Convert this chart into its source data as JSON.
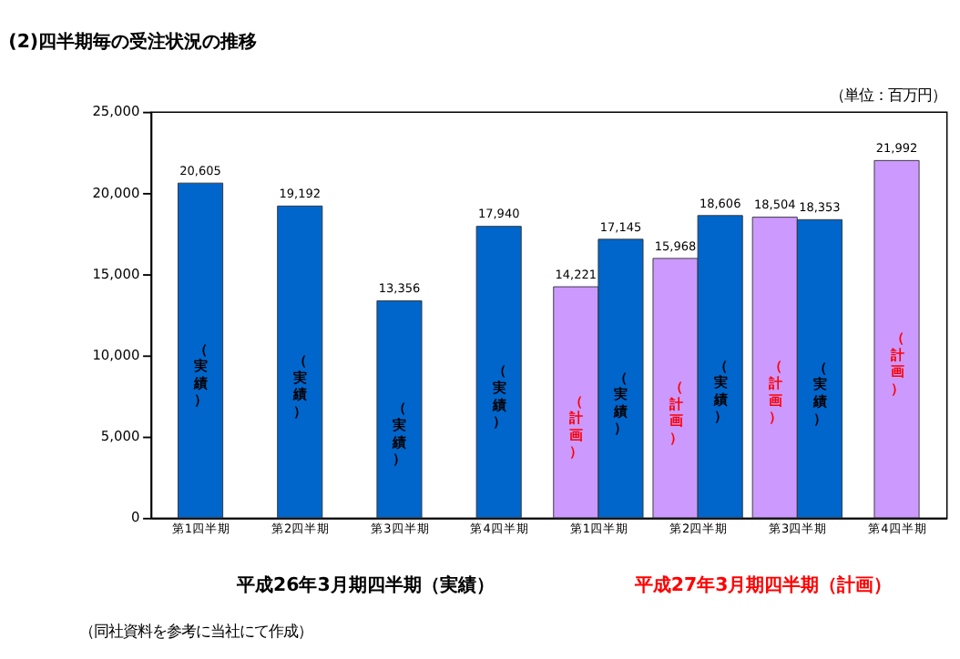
{
  "chart_data": {
    "type": "bar",
    "title": "(2)四半期毎の受注状況の推移",
    "categories": [
      "第1四半期",
      "第2四半期",
      "第3四半期",
      "第4四半期",
      "第1四半期",
      "第2四半期",
      "第3四半期",
      "第4四半期"
    ],
    "series": [
      {
        "name": "（計画）",
        "color": "#cc99ff",
        "values": [
          null,
          null,
          null,
          null,
          14221,
          15968,
          18504,
          21992
        ],
        "value_labels": [
          null,
          null,
          null,
          null,
          "14,221",
          "15,968",
          "18,504",
          "21,992"
        ]
      },
      {
        "name": "（実績）",
        "color": "#0066cc",
        "values": [
          20605,
          19192,
          13356,
          17940,
          17145,
          18606,
          18353,
          null
        ],
        "value_labels": [
          "20,605",
          "19,192",
          "13,356",
          "17,940",
          "17,145",
          "18,606",
          "18,353",
          null
        ]
      }
    ],
    "ylim": [
      0,
      25000
    ],
    "yticks": [
      {
        "value": 0,
        "label": "0"
      },
      {
        "value": 5000,
        "label": "5,000"
      },
      {
        "value": 10000,
        "label": "10,000"
      },
      {
        "value": 15000,
        "label": "15,000"
      },
      {
        "value": 20000,
        "label": "20,000"
      },
      {
        "value": 25000,
        "label": "25,000"
      }
    ],
    "grid": false,
    "legend": false,
    "annotations": [
      "（単位：百万円）",
      "平成26年3月期四半期（実績）",
      "平成27年3月期四半期（計画）",
      "（同社資料を参考に当社にて作成）"
    ]
  }
}
